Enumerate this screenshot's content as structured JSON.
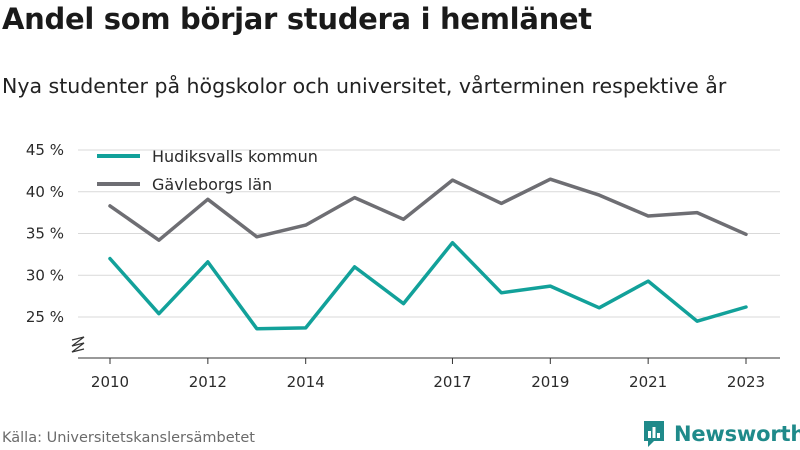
{
  "header": {
    "title": "Andel som börjar studera i hemlänet",
    "subtitle": "Nya studenter på högskolor och universitet, vårterminen respektive år"
  },
  "footer": {
    "source": "Källa: Universitetskanslersämbetet",
    "brand": "Newsworthy",
    "brand_icon": "newsworthy-logo-icon",
    "brand_color": "#1f8a8a"
  },
  "chart_data": {
    "type": "line",
    "title": "Andel som börjar studera i hemlänet",
    "subtitle": "Nya studenter på högskolor och universitet, vårterminen respektive år",
    "xlabel": "",
    "ylabel": "",
    "x": [
      2010,
      2011,
      2012,
      2013,
      2014,
      2015,
      2016,
      2017,
      2018,
      2019,
      2020,
      2021,
      2022,
      2023
    ],
    "x_tick_values": [
      2010,
      2012,
      2014,
      2017,
      2019,
      2021,
      2023
    ],
    "x_tick_labels": [
      "2010",
      "2012",
      "2014",
      "2017",
      "2019",
      "2021",
      "2023"
    ],
    "y_tick_values": [
      25,
      30,
      35,
      40,
      45
    ],
    "y_tick_labels": [
      "25 %",
      "30 %",
      "35 %",
      "40 %",
      "45 %"
    ],
    "ylim": [
      20,
      45
    ],
    "y_axis_break": true,
    "grid": "horizontal",
    "legend_position": "top-left",
    "series": [
      {
        "name": "Hudiksvalls kommun",
        "color": "#12a19a",
        "values": [
          32.0,
          25.4,
          31.6,
          23.6,
          23.7,
          31.0,
          26.6,
          33.9,
          27.9,
          28.7,
          26.1,
          29.3,
          24.5,
          26.2
        ]
      },
      {
        "name": "Gävleborgs län",
        "color": "#6e6e73",
        "values": [
          38.3,
          34.2,
          39.1,
          34.6,
          36.0,
          39.3,
          36.7,
          41.4,
          38.6,
          41.5,
          39.6,
          37.1,
          37.5,
          34.9
        ]
      }
    ]
  }
}
